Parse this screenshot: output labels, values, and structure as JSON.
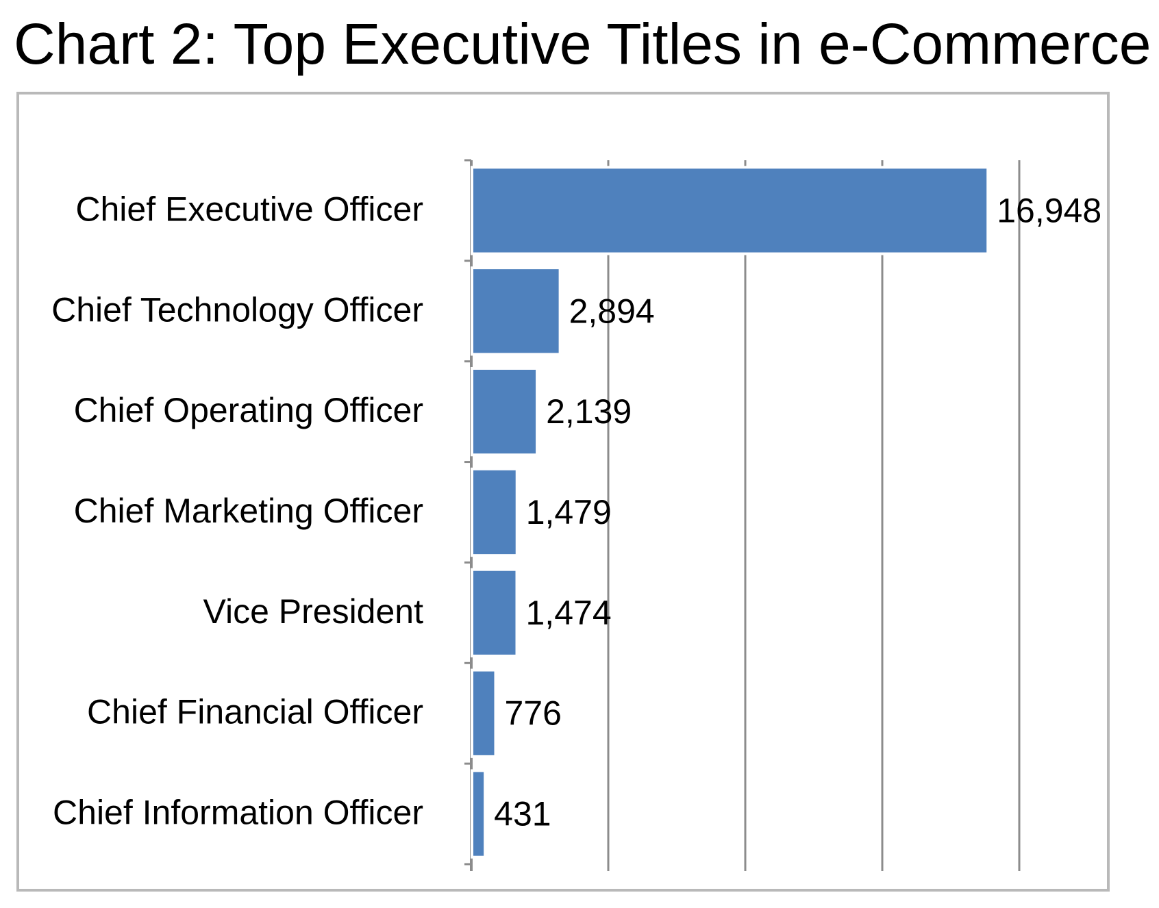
{
  "chart_data": {
    "type": "bar",
    "orientation": "horizontal",
    "title": "Chart 2: Top Executive Titles in e-Commerce",
    "categories": [
      "Chief Executive Officer",
      "Chief Technology Officer",
      "Chief Operating Officer",
      "Chief Marketing Officer",
      "Vice President",
      "Chief Financial Officer",
      "Chief Information Officer"
    ],
    "values": [
      16948,
      2894,
      2139,
      1479,
      1474,
      776,
      431
    ],
    "value_labels": [
      "16,948",
      "2,894",
      "2,139",
      "1,479",
      "1,474",
      "776",
      "431"
    ],
    "xlim": [
      0,
      18000
    ],
    "x_gridlines": [
      0,
      4500,
      9000,
      13500,
      18000
    ],
    "x_tick_labels_shown": false,
    "grid": true,
    "legend": "none",
    "colors": {
      "bar": "#4f81bd",
      "bar_edge": "#ffffff",
      "gridline": "#8c8c8c",
      "frame": "#b9b9b9",
      "text": "#000000"
    }
  }
}
